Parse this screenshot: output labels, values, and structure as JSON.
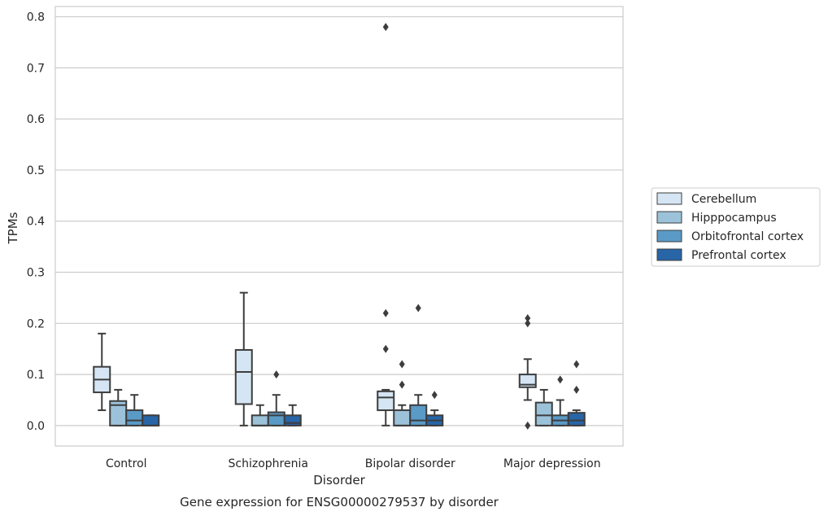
{
  "chart_data": {
    "type": "box",
    "title": "Gene expression for ENSG00000279537 by disorder",
    "xlabel": "Disorder",
    "ylabel": "TPMs",
    "ylim": [
      -0.04,
      0.82
    ],
    "yticks": [
      0.0,
      0.1,
      0.2,
      0.3,
      0.4,
      0.5,
      0.6,
      0.7,
      0.8
    ],
    "ytick_labels": [
      "0.0",
      "0.1",
      "0.2",
      "0.3",
      "0.4",
      "0.5",
      "0.6",
      "0.7",
      "0.8"
    ],
    "grid": "horizontal",
    "legend_position": "right",
    "categories": [
      "Control",
      "Schizophrenia",
      "Bipolar disorder",
      "Major depression"
    ],
    "series": [
      {
        "name": "Cerebellum",
        "color": "#d5e5f3",
        "boxes": [
          {
            "whislo": 0.03,
            "q1": 0.065,
            "med": 0.09,
            "q3": 0.115,
            "whishi": 0.18,
            "fliers": []
          },
          {
            "whislo": 0.0,
            "q1": 0.042,
            "med": 0.105,
            "q3": 0.148,
            "whishi": 0.26,
            "fliers": []
          },
          {
            "whislo": 0.0,
            "q1": 0.03,
            "med": 0.055,
            "q3": 0.067,
            "whishi": 0.07,
            "fliers": [
              0.15,
              0.22,
              0.78
            ]
          },
          {
            "whislo": 0.05,
            "q1": 0.075,
            "med": 0.08,
            "q3": 0.1,
            "whishi": 0.13,
            "fliers": [
              0.0,
              0.2,
              0.21
            ]
          }
        ]
      },
      {
        "name": "Hipppocampus",
        "color": "#9cc2da",
        "boxes": [
          {
            "whislo": 0.0,
            "q1": 0.0,
            "med": 0.04,
            "q3": 0.048,
            "whishi": 0.07,
            "fliers": []
          },
          {
            "whislo": 0.0,
            "q1": 0.0,
            "med": 0.0,
            "q3": 0.02,
            "whishi": 0.04,
            "fliers": []
          },
          {
            "whislo": 0.0,
            "q1": 0.0,
            "med": 0.0,
            "q3": 0.03,
            "whishi": 0.04,
            "fliers": [
              0.08,
              0.12
            ]
          },
          {
            "whislo": 0.0,
            "q1": 0.0,
            "med": 0.02,
            "q3": 0.045,
            "whishi": 0.07,
            "fliers": []
          }
        ]
      },
      {
        "name": "Orbitofrontal cortex",
        "color": "#5a9ac6",
        "boxes": [
          {
            "whislo": 0.0,
            "q1": 0.0,
            "med": 0.01,
            "q3": 0.03,
            "whishi": 0.06,
            "fliers": []
          },
          {
            "whislo": 0.0,
            "q1": 0.0,
            "med": 0.02,
            "q3": 0.026,
            "whishi": 0.06,
            "fliers": [
              0.1
            ]
          },
          {
            "whislo": 0.0,
            "q1": 0.0,
            "med": 0.01,
            "q3": 0.04,
            "whishi": 0.06,
            "fliers": [
              0.23
            ]
          },
          {
            "whislo": 0.0,
            "q1": 0.0,
            "med": 0.01,
            "q3": 0.02,
            "whishi": 0.05,
            "fliers": [
              0.09
            ]
          }
        ]
      },
      {
        "name": "Prefrontal cortex",
        "color": "#2765a6",
        "boxes": [
          {
            "whislo": 0.0,
            "q1": 0.0,
            "med": 0.0,
            "q3": 0.02,
            "whishi": 0.02,
            "fliers": []
          },
          {
            "whislo": 0.0,
            "q1": 0.0,
            "med": 0.005,
            "q3": 0.02,
            "whishi": 0.04,
            "fliers": []
          },
          {
            "whislo": 0.0,
            "q1": 0.0,
            "med": 0.01,
            "q3": 0.02,
            "whishi": 0.03,
            "fliers": [
              0.06
            ]
          },
          {
            "whislo": 0.0,
            "q1": 0.0,
            "med": 0.01,
            "q3": 0.025,
            "whishi": 0.03,
            "fliers": [
              0.07,
              0.12
            ]
          }
        ]
      }
    ]
  }
}
